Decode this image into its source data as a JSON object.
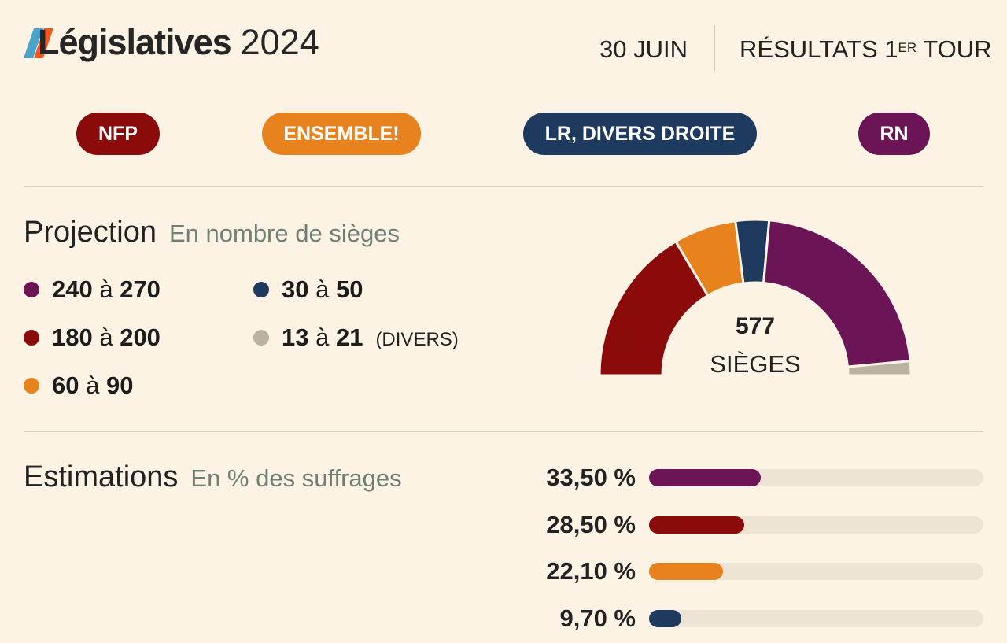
{
  "header": {
    "title_bold": "Législatives",
    "title_year": "2024",
    "date": "30 JUIN",
    "results_main": "RÉSULTATS 1",
    "results_sup": "ER",
    "results_end": " TOUR"
  },
  "parties": [
    {
      "label": "NFP",
      "color": "#8b0a0a"
    },
    {
      "label": "ENSEMBLE!",
      "color": "#e8821d"
    },
    {
      "label": "LR, DIVERS DROITE",
      "color": "#1e3a5f"
    },
    {
      "label": "RN",
      "color": "#6b1456"
    }
  ],
  "projection": {
    "title": "Projection",
    "subtitle": "En nombre de sièges",
    "total_seats": "577",
    "seats_label": "SIÈGES",
    "legend": [
      {
        "low": "240",
        "sep": " à ",
        "high": "270",
        "note": "",
        "color": "#6b1456"
      },
      {
        "low": "180",
        "sep": " à ",
        "high": "200",
        "note": "",
        "color": "#8b0a0a"
      },
      {
        "low": "60",
        "sep": " à ",
        "high": "90",
        "note": "",
        "color": "#e8821d"
      },
      {
        "low": "30",
        "sep": " à ",
        "high": "50",
        "note": "",
        "color": "#1e3a5f"
      },
      {
        "low": "13",
        "sep": " à ",
        "high": "21",
        "note": "(DIVERS)",
        "color": "#bbb3a2"
      }
    ]
  },
  "estimations": {
    "title": "Estimations",
    "subtitle": "En % des suffrages"
  },
  "chart_data": [
    {
      "type": "pie",
      "title": "Projection",
      "subtitle": "En nombre de sièges",
      "total": 577,
      "categories": [
        "NFP",
        "ENSEMBLE!",
        "LR, DIVERS DROITE",
        "RN",
        "DIVERS"
      ],
      "values": [
        190,
        75,
        40,
        255,
        17
      ],
      "colors": [
        "#8b0a0a",
        "#e8821d",
        "#1e3a5f",
        "#6b1456",
        "#bbb3a2"
      ]
    },
    {
      "type": "bar",
      "title": "Estimations",
      "subtitle": "En % des suffrages",
      "categories": [
        "RN",
        "NFP",
        "ENSEMBLE!",
        "LR, DIVERS DROITE"
      ],
      "values": [
        33.5,
        28.5,
        22.1,
        9.7
      ],
      "labels": [
        "33,50 %",
        "28,50 %",
        "22,10 %",
        "9,70 %"
      ],
      "colors": [
        "#6b1456",
        "#8b0a0a",
        "#e8821d",
        "#1e3a5f"
      ],
      "ylim": [
        0,
        100
      ]
    }
  ]
}
